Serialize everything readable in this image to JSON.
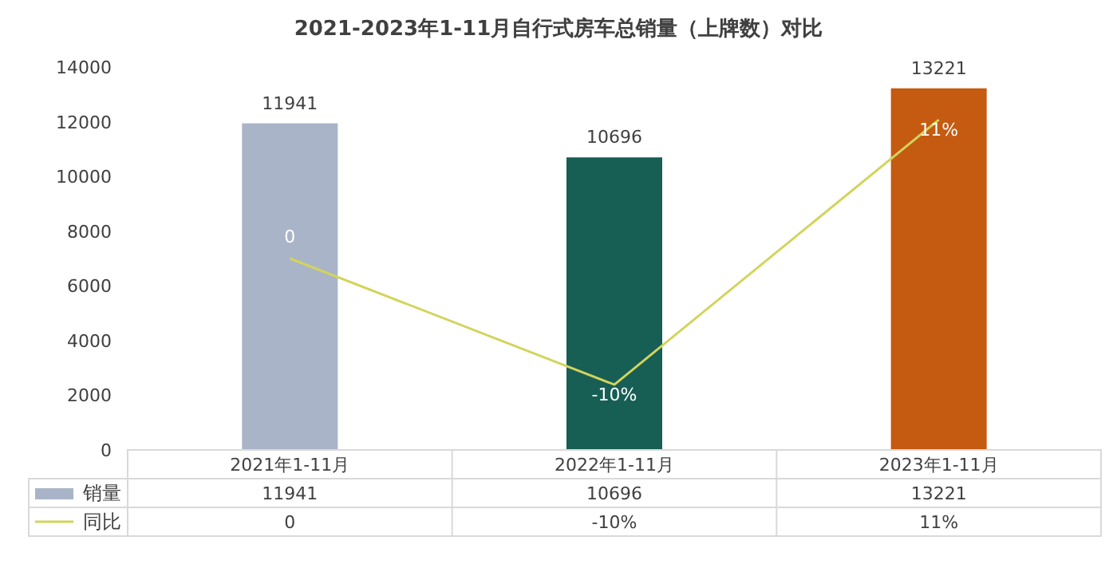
{
  "chart_data": {
    "type": "bar",
    "title": "2021-2023年1-11月自行式房车总销量（上牌数）对比",
    "categories": [
      "2021年1-11月",
      "2022年1-11月",
      "2023年1-11月"
    ],
    "series": [
      {
        "name": "销量",
        "color": "#a9b4c8",
        "colors": [
          "#a9b4c8",
          "#175e55",
          "#c55a11"
        ],
        "values": [
          11941,
          10696,
          13221
        ],
        "value_labels": [
          "11941",
          "10696",
          "13221"
        ]
      },
      {
        "name": "同比",
        "type": "line",
        "axis": "y2",
        "color": "#d2d45c",
        "values": [
          0,
          -10,
          11
        ],
        "value_labels": [
          "0",
          "-10%",
          "11%"
        ]
      }
    ],
    "ylim": [
      0,
      14000
    ],
    "yticks": [
      0,
      2000,
      4000,
      6000,
      8000,
      10000,
      12000,
      14000
    ],
    "legend": "bottom",
    "grid": false
  }
}
